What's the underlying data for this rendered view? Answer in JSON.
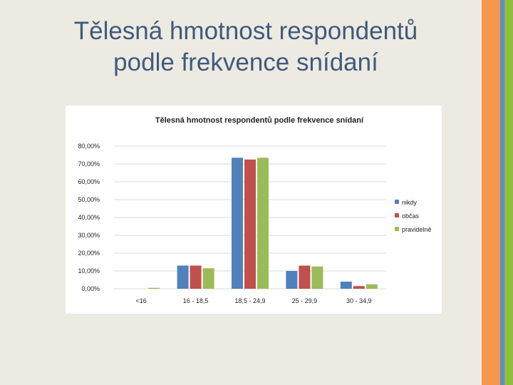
{
  "slide": {
    "title_line1": "Tělesná hmotnost respondentů",
    "title_line2": "podle frekvence snídaní"
  },
  "colors": {
    "background": "#edeae2",
    "title": "#3f5b7c",
    "stripe_orange": "#f5964a",
    "stripe_blue": "#5b8fc7",
    "stripe_green": "#8fbf3f"
  },
  "chart_data": {
    "type": "bar",
    "title": "Tělesná hmotnost respondentů podle frekvence snídaní",
    "categories": [
      "<16",
      "16 - 18,5",
      "18,5 - 24,9",
      "25 - 29,9",
      "30 - 34,9"
    ],
    "series": [
      {
        "name": "nikdy",
        "color": "#4f81bd",
        "values": [
          0.0,
          13.0,
          73.5,
          10.0,
          4.0
        ]
      },
      {
        "name": "občas",
        "color": "#c0504d",
        "values": [
          0.0,
          13.0,
          72.5,
          13.0,
          1.5
        ]
      },
      {
        "name": "pravidelně",
        "color": "#9bbb59",
        "values": [
          0.5,
          11.5,
          73.5,
          12.5,
          2.5
        ]
      }
    ],
    "ylim": [
      0,
      80
    ],
    "yticks": [
      "0,00%",
      "10,00%",
      "20,00%",
      "30,00%",
      "40,00%",
      "50,00%",
      "60,00%",
      "70,00%",
      "80,00%"
    ],
    "grid": true,
    "legend_position": "right"
  }
}
